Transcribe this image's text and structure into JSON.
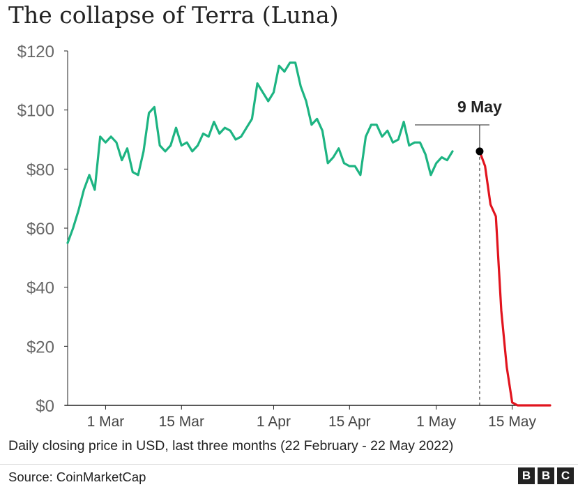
{
  "header": {
    "title": "The collapse of Terra (Luna)"
  },
  "footer": {
    "caption": "Daily closing price in USD, last three months (22 February - 22 May 2022)",
    "source": "Source: CoinMarketCap",
    "logo_letters": [
      "B",
      "B",
      "C"
    ]
  },
  "colors": {
    "pre_collapse": "#1db482",
    "collapse": "#e1141e",
    "annotation": "#222222"
  },
  "chart_data": {
    "type": "line",
    "title": "The collapse of Terra (Luna)",
    "xlabel": "",
    "ylabel": "",
    "ylim": [
      0,
      120
    ],
    "xlim": [
      "2022-02-22",
      "2022-05-22"
    ],
    "grid": false,
    "y_ticks": [
      0,
      20,
      40,
      60,
      80,
      100,
      120
    ],
    "y_tick_labels": [
      "$0",
      "$20",
      "$40",
      "$60",
      "$80",
      "$100",
      "$120"
    ],
    "x_ticks": [
      "2022-03-01",
      "2022-03-15",
      "2022-04-01",
      "2022-04-15",
      "2022-05-01",
      "2022-05-15"
    ],
    "x_tick_labels": [
      "1 Mar",
      "15 Mar",
      "1 Apr",
      "15 Apr",
      "1 May",
      "15 May"
    ],
    "annotation": {
      "label": "9 May",
      "date": "2022-05-09",
      "value": 86
    },
    "series": [
      {
        "start": "2022-02-22",
        "values": [
          55,
          60,
          66,
          73,
          78,
          73,
          91,
          89,
          91,
          89,
          83,
          87,
          79,
          78,
          86,
          99,
          101,
          88,
          86,
          88,
          94,
          88,
          89,
          86,
          88,
          92,
          91,
          96,
          92,
          94,
          93,
          90,
          91,
          94,
          97,
          109,
          106,
          103,
          106,
          115,
          113,
          116,
          116,
          108,
          103,
          95,
          97,
          93,
          82,
          84,
          87,
          82,
          81,
          81,
          78,
          91,
          95,
          95,
          91,
          93,
          89,
          90,
          96,
          88,
          89,
          89,
          85,
          78,
          82,
          84,
          83,
          86
        ]
      },
      {
        "start": "2022-05-09",
        "values": [
          86,
          81,
          68,
          64,
          32,
          13,
          1,
          0,
          0,
          0,
          0,
          0,
          0,
          0
        ]
      }
    ]
  }
}
